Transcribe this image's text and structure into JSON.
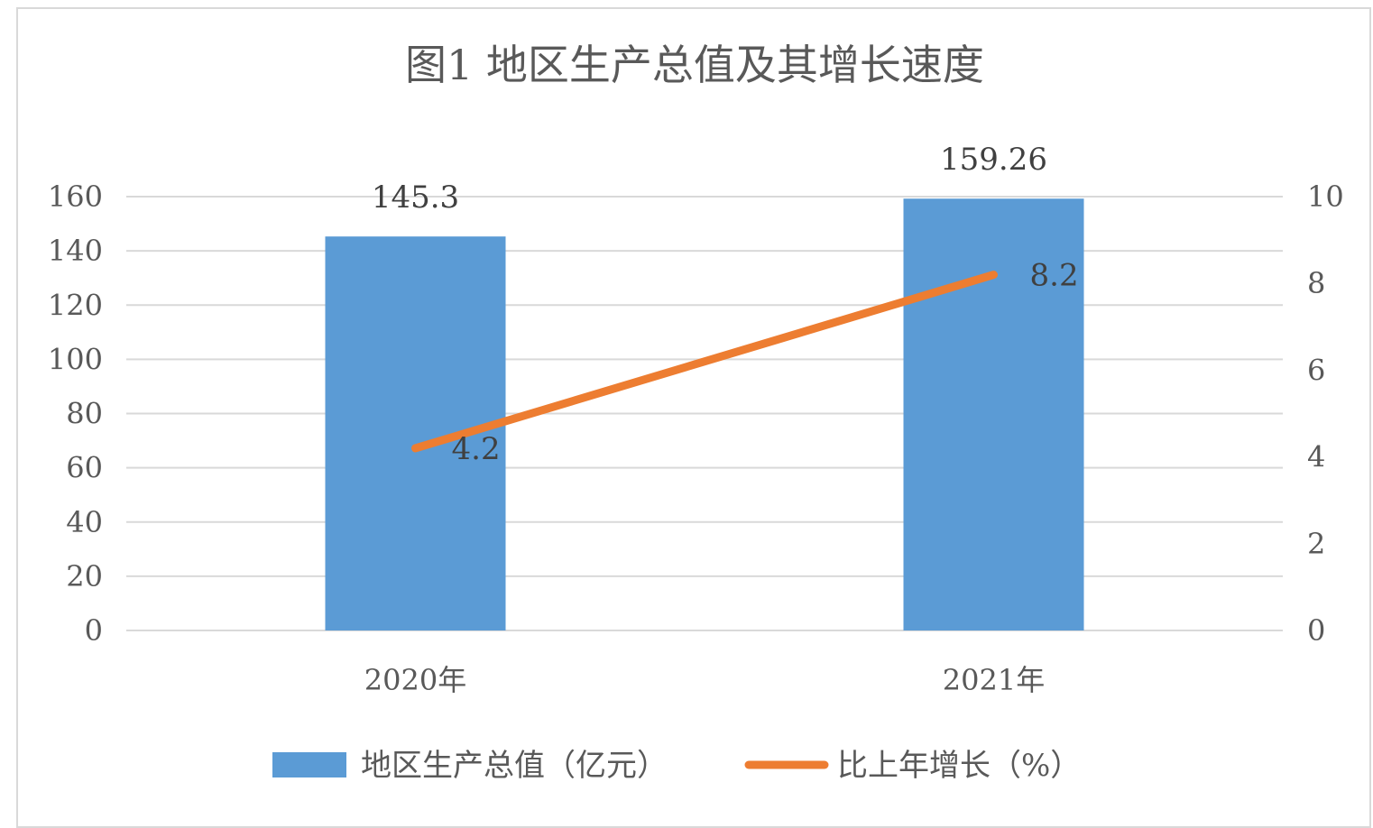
{
  "chart_data": {
    "type": "bar",
    "title": "图1  地区生产总值及其增长速度",
    "categories": [
      "2020年",
      "2021年"
    ],
    "series": [
      {
        "name": "地区生产总值（亿元）",
        "type": "bar",
        "axis": "left",
        "color": "#5b9bd5",
        "values": [
          145.3,
          159.26
        ],
        "labels": [
          "145.3",
          "159.26"
        ]
      },
      {
        "name": "比上年增长（%）",
        "type": "line",
        "axis": "right",
        "color": "#ed7d31",
        "values": [
          4.2,
          8.2
        ],
        "labels": [
          "4.2",
          "8.2"
        ]
      }
    ],
    "y_left": {
      "min": 0,
      "max": 160,
      "ticks": [
        0,
        20,
        40,
        60,
        80,
        100,
        120,
        140,
        160
      ]
    },
    "y_right": {
      "min": 0,
      "max": 10,
      "ticks": [
        0,
        2,
        4,
        6,
        8,
        10
      ]
    },
    "grid": true,
    "legend": "bottom",
    "gridline_color": "#d9d9d9"
  }
}
